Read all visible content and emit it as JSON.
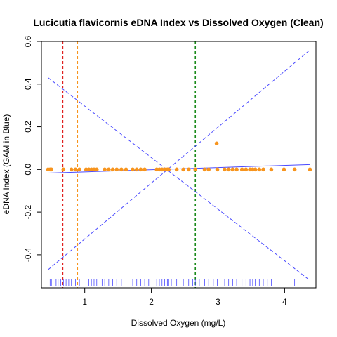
{
  "chart_data": {
    "type": "scatter",
    "title": "Lucicutia flavicornis eDNA Index vs Dissolved Oxygen (Clean)",
    "xlabel": "Dissolved Oxygen (mg/L)",
    "ylabel": "eDNA Index (GAM in Blue)",
    "xlim": [
      0.35,
      4.47
    ],
    "ylim": [
      -0.555,
      0.6
    ],
    "x_ticks": [
      1,
      2,
      3,
      4
    ],
    "y_ticks": [
      -0.4,
      -0.2,
      0.0,
      0.2,
      0.4,
      0.6
    ],
    "x_tick_labels": [
      "1",
      "2",
      "3",
      "4"
    ],
    "y_tick_labels": [
      "-0.4",
      "-0.2",
      "0.0",
      "0.2",
      "0.4",
      "0.6"
    ],
    "grid": false,
    "point_color": "#f7941d",
    "points": {
      "x": [
        0.45,
        0.48,
        0.5,
        0.68,
        0.8,
        0.86,
        0.92,
        1.02,
        1.06,
        1.1,
        1.14,
        1.18,
        1.3,
        1.36,
        1.42,
        1.48,
        1.55,
        1.62,
        1.72,
        1.78,
        1.84,
        1.9,
        2.08,
        2.12,
        2.16,
        2.2,
        2.24,
        2.26,
        2.38,
        2.48,
        2.56,
        2.66,
        2.8,
        2.86,
        2.99,
        3.1,
        3.16,
        3.22,
        3.28,
        3.36,
        3.42,
        3.48,
        3.52,
        3.56,
        3.62,
        3.68,
        3.8,
        3.99,
        4.15,
        4.38,
        2.98
      ],
      "y": [
        0,
        0,
        0,
        0,
        0,
        0,
        0,
        0,
        0,
        0,
        0,
        0,
        0,
        0,
        0,
        0,
        0,
        0,
        0,
        0,
        0,
        0,
        0,
        0,
        0,
        0,
        0,
        0,
        0,
        0,
        0,
        0,
        0,
        0,
        0,
        0,
        0,
        0,
        0,
        0,
        0,
        0,
        0,
        0,
        0,
        0,
        0,
        0,
        0,
        0,
        0.122
      ]
    },
    "gam_fit": {
      "color": "#4a4aff",
      "x": [
        0.45,
        4.38
      ],
      "y": [
        -0.017,
        0.023
      ]
    },
    "confidence_bands": {
      "color": "#4a4aff",
      "style": "dashed",
      "upper": {
        "x": [
          0.45,
          4.38
        ],
        "y": [
          -0.47,
          0.56
        ]
      },
      "lower": {
        "x": [
          0.45,
          4.38
        ],
        "y": [
          0.43,
          -0.52
        ]
      }
    },
    "vertical_lines": [
      {
        "x": 0.67,
        "color": "#e0201f",
        "style": "dashed"
      },
      {
        "x": 0.89,
        "color": "#f7941d",
        "style": "dashed"
      },
      {
        "x": 2.66,
        "color": "#1a8a1a",
        "style": "dashed"
      }
    ],
    "rug": {
      "color": "#4a4aff",
      "x": [
        0.45,
        0.48,
        0.5,
        0.57,
        0.6,
        0.64,
        0.68,
        0.72,
        0.76,
        0.8,
        0.86,
        0.92,
        1.02,
        1.06,
        1.1,
        1.14,
        1.18,
        1.26,
        1.3,
        1.36,
        1.42,
        1.48,
        1.55,
        1.62,
        1.72,
        1.78,
        1.84,
        1.9,
        1.96,
        2.08,
        2.12,
        2.16,
        2.2,
        2.24,
        2.26,
        2.3,
        2.38,
        2.48,
        2.56,
        2.62,
        2.66,
        2.72,
        2.8,
        2.86,
        2.93,
        2.99,
        3.1,
        3.16,
        3.22,
        3.28,
        3.36,
        3.42,
        3.48,
        3.52,
        3.56,
        3.62,
        3.68,
        3.74,
        3.8,
        3.99,
        4.15,
        4.38
      ]
    }
  }
}
